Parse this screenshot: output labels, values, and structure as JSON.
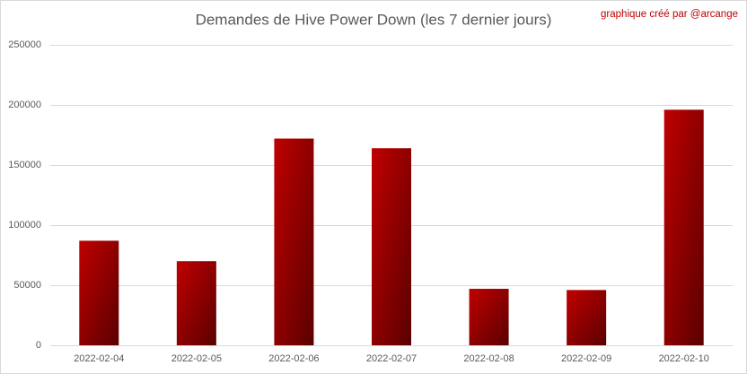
{
  "chart_data": {
    "type": "bar",
    "title": "Demandes de Hive Power Down (les 7 dernier jours)",
    "annotation": "graphique créé par @arcange",
    "categories": [
      "2022-02-04",
      "2022-02-05",
      "2022-02-06",
      "2022-02-07",
      "2022-02-08",
      "2022-02-09",
      "2022-02-10"
    ],
    "values": [
      87000,
      70000,
      172000,
      164000,
      47000,
      46000,
      196000
    ],
    "color": "#c00000",
    "ylim": [
      0,
      250000
    ],
    "yticks": [
      0,
      50000,
      100000,
      150000,
      200000,
      250000
    ],
    "grid": true
  }
}
